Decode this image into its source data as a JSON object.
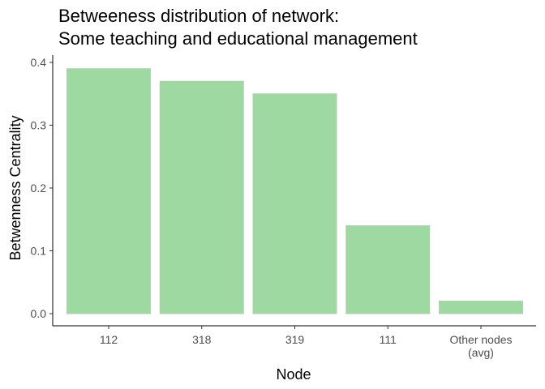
{
  "chart_data": {
    "type": "bar",
    "title_lines": [
      "Betweeness distribution of network:",
      "Some teaching and educational management"
    ],
    "xlabel": "Node",
    "ylabel": "Betwenness Centrality",
    "categories": [
      [
        "112"
      ],
      [
        "318"
      ],
      [
        "319"
      ],
      [
        "111"
      ],
      [
        "Other nodes",
        "(avg)"
      ]
    ],
    "values": [
      0.39,
      0.37,
      0.35,
      0.14,
      0.02
    ],
    "yticks": [
      "0.0",
      "0.1",
      "0.2",
      "0.3",
      "0.4"
    ],
    "ylim": [
      0,
      0.4
    ],
    "grid": false,
    "legend": "none",
    "bar_color": "#9dd9a0",
    "bar_stroke": "#b5ccb6"
  }
}
